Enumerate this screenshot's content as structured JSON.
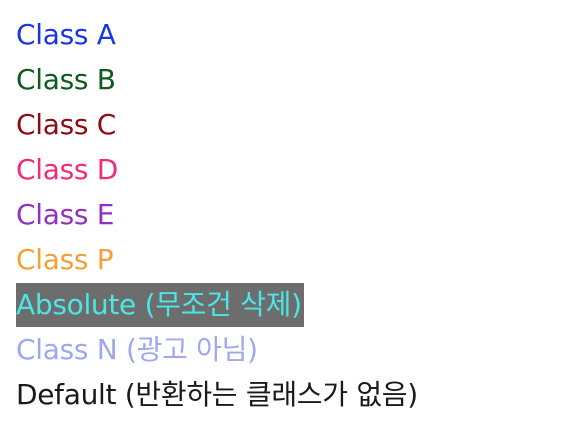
{
  "items": [
    {
      "label": "Class A",
      "color": "#1a35e6"
    },
    {
      "label": "Class B",
      "color": "#0f5a1e"
    },
    {
      "label": "Class C",
      "color": "#8e0b14"
    },
    {
      "label": "Class D",
      "color": "#f12b7a"
    },
    {
      "label": "Class E",
      "color": "#9330c4"
    },
    {
      "label": "Class P",
      "color": "#f3a038"
    },
    {
      "label": "Absolute (무조건 삭제)",
      "color": "#4ce6e6",
      "background": "#6d6d6d"
    },
    {
      "label": "Class N (광고 아님)",
      "color": "#9fa7ef"
    },
    {
      "label": "Default (반환하는 클래스가 없음)",
      "color": "#1a1a1a"
    }
  ]
}
